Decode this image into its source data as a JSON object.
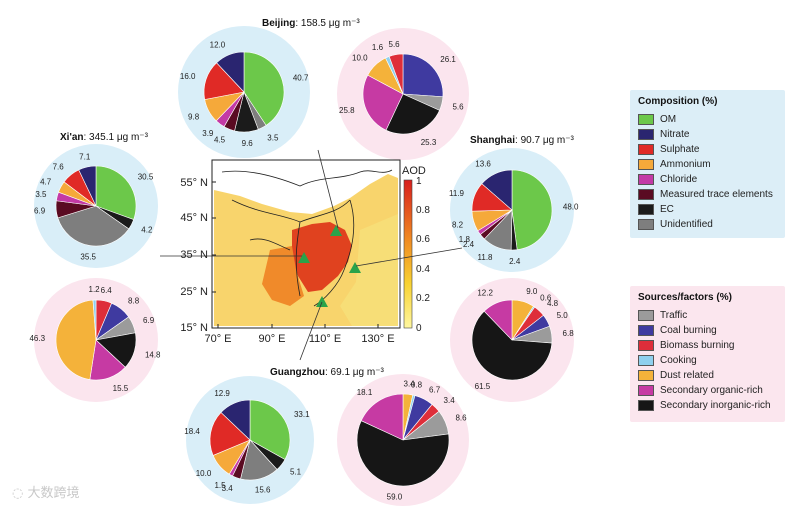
{
  "colors": {
    "composition": {
      "OM": "#6cc84a",
      "Nitrate": "#2a2570",
      "Sulphate": "#e02a26",
      "Ammonium": "#f5a93a",
      "Chloride": "#c33aa6",
      "Measured trace elements": "#5a0b22",
      "EC": "#1b1b1b",
      "Unidentified": "#7e7e7e"
    },
    "sources": {
      "Traffic": "#9b9b9b",
      "Coal burning": "#3f3aa0",
      "Biomass burning": "#de2e3a",
      "Cooking": "#8fd0ee",
      "Dust related": "#f4b23a",
      "Secondary organic-rich": "#c63aa3",
      "Secondary inorganic-rich": "#161616"
    },
    "circle_composition": "#d9eef8",
    "circle_sources": "#fbe5ee"
  },
  "legend_composition": {
    "title": "Composition (%)",
    "items": [
      "OM",
      "Nitrate",
      "Sulphate",
      "Ammonium",
      "Chloride",
      "Measured trace elements",
      "EC",
      "Unidentified"
    ]
  },
  "legend_sources": {
    "title": "Sources/factors (%)",
    "items": [
      "Traffic",
      "Coal burning",
      "Biomass burning",
      "Cooking",
      "Dust related",
      "Secondary organic-rich",
      "Secondary inorganic-rich"
    ]
  },
  "city_titles": {
    "beijing": {
      "name": "Beijing",
      "value": ": 158.5 μg m⁻³"
    },
    "xian": {
      "name": "Xi'an",
      "value": ": 345.1 μg m⁻³"
    },
    "shanghai": {
      "name": "Shanghai",
      "value": ": 90.7 μg m⁻³"
    },
    "guangzhou": {
      "name": "Guangzhou",
      "value": ": 69.1 μg m⁻³"
    }
  },
  "map": {
    "lat_labels": [
      "55° N",
      "45° N",
      "35° N",
      "25° N",
      "15° N"
    ],
    "lon_labels": [
      "70° E",
      "90° E",
      "110° E",
      "130° E"
    ],
    "colorbar_title": "AOD",
    "colorbar_ticks": [
      "1",
      "0.8",
      "0.6",
      "0.4",
      "0.2",
      "0"
    ]
  },
  "watermark": "大数跨境",
  "chart_data": [
    {
      "type": "pie",
      "city": "Beijing",
      "kind": "composition",
      "values": [
        {
          "label": "OM",
          "value": 40.7
        },
        {
          "label": "Unidentified",
          "value": 3.5
        },
        {
          "label": "EC",
          "value": 9.6
        },
        {
          "label": "Measured trace elements",
          "value": 4.5
        },
        {
          "label": "Chloride",
          "value": 3.9
        },
        {
          "label": "Ammonium",
          "value": 9.8
        },
        {
          "label": "Sulphate",
          "value": 16.0
        },
        {
          "label": "Nitrate",
          "value": 12.0
        }
      ]
    },
    {
      "type": "pie",
      "city": "Beijing",
      "kind": "sources",
      "values": [
        {
          "label": "Coal burning",
          "value": 26.1
        },
        {
          "label": "Traffic",
          "value": 5.6
        },
        {
          "label": "Secondary inorganic-rich",
          "value": 25.3
        },
        {
          "label": "Secondary organic-rich",
          "value": 25.8
        },
        {
          "label": "Dust related",
          "value": 10.0
        },
        {
          "label": "Cooking",
          "value": 1.6
        },
        {
          "label": "Biomass burning",
          "value": 5.6
        }
      ]
    },
    {
      "type": "pie",
      "city": "Xi'an",
      "kind": "composition",
      "values": [
        {
          "label": "OM",
          "value": 30.5
        },
        {
          "label": "EC",
          "value": 4.2
        },
        {
          "label": "Unidentified",
          "value": 35.5
        },
        {
          "label": "Measured trace elements",
          "value": 6.9
        },
        {
          "label": "Chloride",
          "value": 3.5
        },
        {
          "label": "Ammonium",
          "value": 4.7
        },
        {
          "label": "Sulphate",
          "value": 7.6
        },
        {
          "label": "Nitrate",
          "value": 7.1
        }
      ]
    },
    {
      "type": "pie",
      "city": "Xi'an",
      "kind": "sources",
      "values": [
        {
          "label": "Biomass burning",
          "value": 6.4
        },
        {
          "label": "Coal burning",
          "value": 8.8
        },
        {
          "label": "Traffic",
          "value": 6.9
        },
        {
          "label": "Secondary inorganic-rich",
          "value": 14.8
        },
        {
          "label": "Secondary organic-rich",
          "value": 15.5
        },
        {
          "label": "Dust related",
          "value": 46.3
        },
        {
          "label": "Cooking",
          "value": 1.2
        }
      ]
    },
    {
      "type": "pie",
      "city": "Shanghai",
      "kind": "composition",
      "values": [
        {
          "label": "OM",
          "value": 48.0
        },
        {
          "label": "EC",
          "value": 2.4
        },
        {
          "label": "Unidentified",
          "value": 11.8
        },
        {
          "label": "Measured trace elements",
          "value": 2.4
        },
        {
          "label": "Chloride",
          "value": 1.8
        },
        {
          "label": "Ammonium",
          "value": 8.2
        },
        {
          "label": "Sulphate",
          "value": 11.9
        },
        {
          "label": "Nitrate",
          "value": 13.6
        }
      ]
    },
    {
      "type": "pie",
      "city": "Shanghai",
      "kind": "sources",
      "values": [
        {
          "label": "Dust related",
          "value": 9.0
        },
        {
          "label": "Cooking",
          "value": 0.6
        },
        {
          "label": "Biomass burning",
          "value": 4.8
        },
        {
          "label": "Coal burning",
          "value": 5.0
        },
        {
          "label": "Traffic",
          "value": 6.8
        },
        {
          "label": "Secondary inorganic-rich",
          "value": 61.5
        },
        {
          "label": "Secondary organic-rich",
          "value": 12.2
        }
      ]
    },
    {
      "type": "pie",
      "city": "Guangzhou",
      "kind": "composition",
      "values": [
        {
          "label": "OM",
          "value": 33.1
        },
        {
          "label": "EC",
          "value": 5.1
        },
        {
          "label": "Unidentified",
          "value": 15.6
        },
        {
          "label": "Measured trace elements",
          "value": 3.4
        },
        {
          "label": "Chloride",
          "value": 1.5
        },
        {
          "label": "Ammonium",
          "value": 10.0
        },
        {
          "label": "Sulphate",
          "value": 18.4
        },
        {
          "label": "Nitrate",
          "value": 12.9
        }
      ]
    },
    {
      "type": "pie",
      "city": "Guangzhou",
      "kind": "sources",
      "values": [
        {
          "label": "Dust related",
          "value": 3.4
        },
        {
          "label": "Cooking",
          "value": 0.8
        },
        {
          "label": "Coal burning",
          "value": 6.7
        },
        {
          "label": "Biomass burning",
          "value": 3.4
        },
        {
          "label": "Traffic",
          "value": 8.6
        },
        {
          "label": "Secondary inorganic-rich",
          "value": 59.0
        },
        {
          "label": "Secondary organic-rich",
          "value": 18.1
        }
      ]
    }
  ]
}
